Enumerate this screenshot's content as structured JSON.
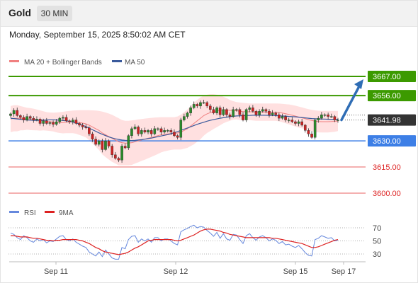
{
  "header": {
    "title": "Gold",
    "timeframe": "30 MIN"
  },
  "timestamp": "Monday, September 15, 2025 8:50:02 AM CET",
  "colors": {
    "candle_up": "#2a8a2a",
    "candle_down": "#cc2222",
    "bollinger_fill": "#ffd6d6",
    "ma20": "#f08080",
    "ma50": "#3a5a9c",
    "resistance": "#3c9a00",
    "support": "#3d7fe6",
    "secondary_support": "#e86060",
    "current_price_label": "#333333",
    "arrow": "#2f6db5",
    "rsi": "#6688dd",
    "rsi_ma": "#dd2222"
  },
  "chart_data": [
    {
      "type": "candlestick",
      "legend": [
        {
          "name": "MA 20 + Bollinger Bands",
          "color": "#f08080"
        },
        {
          "name": "MA 50",
          "color": "#3a5a9c"
        }
      ],
      "x_labels": [
        "Sep 11",
        "Sep 12",
        "Sep 15",
        "Sep 17"
      ],
      "price_levels": [
        {
          "value": 3667.0,
          "label": "3667.00",
          "kind": "resistance"
        },
        {
          "value": 3656.0,
          "label": "3656.00",
          "kind": "resistance"
        },
        {
          "value": 3641.98,
          "label": "3641.98",
          "kind": "current"
        },
        {
          "value": 3630.0,
          "label": "3630.00",
          "kind": "support"
        },
        {
          "value": 3615.0,
          "label": "3615.00",
          "kind": "secondary_support"
        },
        {
          "value": 3600.0,
          "label": "3600.00",
          "kind": "secondary_support"
        }
      ],
      "ylim": [
        3595,
        3672
      ],
      "close": [
        3645.5,
        3647.5,
        3644.5,
        3643.5,
        3642,
        3644,
        3643,
        3642,
        3642.5,
        3640,
        3641.5,
        3640,
        3640.5,
        3639.5,
        3641,
        3643,
        3643.5,
        3641.5,
        3641,
        3642,
        3640,
        3639,
        3638,
        3637.5,
        3634,
        3631,
        3628,
        3630,
        3625,
        3630,
        3627,
        3622,
        3620,
        3619,
        3627,
        3626,
        3633,
        3637,
        3638,
        3634,
        3636,
        3635,
        3636,
        3634,
        3637,
        3637,
        3635,
        3636,
        3636,
        3635,
        3633,
        3632,
        3642,
        3644,
        3646,
        3649,
        3651,
        3650,
        3652,
        3652,
        3650,
        3648,
        3646,
        3649,
        3645,
        3648,
        3645,
        3644,
        3648,
        3648,
        3645,
        3642,
        3648,
        3649,
        3647,
        3645,
        3647,
        3648,
        3647,
        3645,
        3646,
        3645,
        3643,
        3644,
        3642,
        3642,
        3641,
        3640,
        3641,
        3639,
        3636,
        3634,
        3632,
        3642,
        3643,
        3645,
        3645,
        3644,
        3644,
        3642,
        3642
      ],
      "ma20": [
        3642.5,
        3643,
        3643,
        3643,
        3642.8,
        3642.7,
        3642.5,
        3642.3,
        3642,
        3641.7,
        3641.5,
        3641.2,
        3641,
        3640.8,
        3640.6,
        3640.5,
        3640.5,
        3640.7,
        3640.8,
        3640.9,
        3640.8,
        3640.5,
        3640.2,
        3639.8,
        3639,
        3638,
        3637,
        3636,
        3634.5,
        3633.5,
        3632.5,
        3631.5,
        3630.5,
        3629.5,
        3629,
        3628.7,
        3628.7,
        3629,
        3629.5,
        3630,
        3630.5,
        3631,
        3631.5,
        3632,
        3632.5,
        3633,
        3633.5,
        3633.8,
        3634,
        3634.2,
        3634.3,
        3634.5,
        3635,
        3636,
        3637,
        3638.5,
        3640,
        3641.5,
        3643,
        3644.5,
        3645.5,
        3646.2,
        3646.8,
        3647.2,
        3647.5,
        3647.7,
        3647.7,
        3647.5,
        3647.5,
        3647.3,
        3647,
        3646.8,
        3646.7,
        3646.7,
        3646.6,
        3646.5,
        3646.5,
        3646.5,
        3646.5,
        3646.5,
        3646.5,
        3646.5,
        3646.3,
        3646,
        3645.6,
        3645.2,
        3644.7,
        3644.2,
        3643.7,
        3643.2,
        3642.7,
        3642.2,
        3641.7,
        3641.3,
        3641.1,
        3641,
        3641,
        3641,
        3641.1,
        3641.2,
        3641.4
      ],
      "ma50": [
        3643,
        3642.8,
        3642.6,
        3642.4,
        3642.2,
        3642,
        3641.9,
        3641.8,
        3641.8,
        3641.8,
        3641.9,
        3642,
        3642.1,
        3642.1,
        3642,
        3641.9,
        3641.7,
        3641.5,
        3641.2,
        3640.8,
        3640.3,
        3639.7,
        3639,
        3638.2,
        3637.3,
        3636.4,
        3635.5,
        3634.6,
        3633.8,
        3633,
        3632.3,
        3631.7,
        3631.2,
        3630.8,
        3630.5,
        3630.3,
        3630.2,
        3630.2,
        3630.3,
        3630.5,
        3630.7,
        3631,
        3631.3,
        3631.6,
        3632,
        3632.4,
        3632.8,
        3633.2,
        3633.6,
        3634.1,
        3634.7,
        3635.3,
        3636,
        3636.7,
        3637.4,
        3638.1,
        3638.8,
        3639.5,
        3640.1,
        3640.7,
        3641.3,
        3641.8,
        3642.2,
        3642.6,
        3643,
        3643.3,
        3643.6,
        3643.9,
        3644.1,
        3644.3,
        3644.4,
        3644.5,
        3644.6,
        3644.6,
        3644.7,
        3644.7,
        3644.7,
        3644.7,
        3644.7,
        3644.6,
        3644.6,
        3644.5,
        3644.4,
        3644.3,
        3644.2,
        3644,
        3643.9,
        3643.8,
        3643.6,
        3643.4,
        3643.2,
        3643,
        3642.8,
        3642.7,
        3642.6,
        3642.5,
        3642.5,
        3642.4,
        3642.4,
        3642.4,
        3642.4
      ],
      "bollinger_upper": [
        3650,
        3650.5,
        3650.5,
        3650,
        3649.5,
        3649,
        3648.8,
        3648.5,
        3648,
        3647.5,
        3647,
        3646.5,
        3646.3,
        3646.2,
        3646.3,
        3646.5,
        3646.7,
        3647,
        3647.2,
        3647.4,
        3647.5,
        3647.6,
        3647.6,
        3647.6,
        3647.6,
        3647.5,
        3647.4,
        3647.2,
        3646.8,
        3646.3,
        3645.7,
        3645,
        3644,
        3643,
        3642,
        3641.5,
        3641.5,
        3641.8,
        3642,
        3642.3,
        3642.5,
        3642.8,
        3643,
        3643.2,
        3643.4,
        3643.5,
        3643.6,
        3643.6,
        3643.6,
        3643.6,
        3643.6,
        3644,
        3645,
        3646.5,
        3648,
        3650,
        3652,
        3653.5,
        3655,
        3656,
        3656.5,
        3656.8,
        3656.8,
        3656.5,
        3656,
        3655.3,
        3654.5,
        3653.5,
        3652.8,
        3652.3,
        3652,
        3651.8,
        3651.6,
        3651.5,
        3651.5,
        3651.5,
        3651.5,
        3651.5,
        3651.5,
        3651.5,
        3651.5,
        3651.5,
        3651.4,
        3651.3,
        3651.1,
        3650.9,
        3650.6,
        3650.2,
        3649.7,
        3649.2,
        3648.7,
        3648.2,
        3647.8,
        3647.5,
        3647.3,
        3647.2,
        3647.2,
        3647.2,
        3647.2,
        3647.2,
        3647.2
      ],
      "bollinger_lower": [
        3635,
        3635.5,
        3635.5,
        3636,
        3636.1,
        3636.4,
        3636.2,
        3636.1,
        3636,
        3635.9,
        3636,
        3635.9,
        3635.7,
        3635.4,
        3634.9,
        3634.5,
        3634.3,
        3634.4,
        3634.4,
        3634.4,
        3634.1,
        3633.4,
        3632.8,
        3632,
        3630.4,
        3628.5,
        3626.6,
        3624.8,
        3622.2,
        3620.7,
        3619.3,
        3618,
        3617,
        3616,
        3616,
        3616,
        3616,
        3616.2,
        3617,
        3617.7,
        3618.5,
        3619.2,
        3620,
        3620.8,
        3621.6,
        3622.5,
        3623.4,
        3624,
        3624.4,
        3624.8,
        3625,
        3625,
        3625,
        3625.5,
        3626,
        3627,
        3628,
        3629.5,
        3631,
        3633,
        3634.5,
        3635.6,
        3636.8,
        3637.9,
        3639,
        3640.1,
        3640.9,
        3641.5,
        3642.2,
        3642.3,
        3642,
        3641.8,
        3641.8,
        3641.9,
        3641.7,
        3641.5,
        3641.5,
        3641.5,
        3641.5,
        3641.5,
        3641.5,
        3641.5,
        3641.2,
        3640.7,
        3640.1,
        3639.5,
        3638.8,
        3638.2,
        3637.7,
        3637.2,
        3636.7,
        3636.2,
        3635.6,
        3635.1,
        3634.9,
        3634.8,
        3634.8,
        3634.8,
        3635,
        3635.2,
        3635.6
      ],
      "projection_arrow": {
        "from": 3641.98,
        "to": 3667.0
      }
    },
    {
      "type": "line",
      "legend": [
        {
          "name": "RSI",
          "color": "#6688dd"
        },
        {
          "name": "9MA",
          "color": "#dd2222"
        }
      ],
      "y_ticks": [
        70,
        50,
        30
      ],
      "ylim": [
        22,
        78
      ],
      "rsi": [
        62,
        60,
        55,
        52,
        58,
        55,
        50,
        48,
        53,
        50,
        52,
        47,
        50,
        49,
        53,
        57,
        58,
        52,
        50,
        53,
        48,
        45,
        42,
        40,
        33,
        30,
        27,
        33,
        26,
        36,
        30,
        24,
        22,
        22,
        40,
        38,
        52,
        57,
        58,
        48,
        53,
        50,
        53,
        48,
        55,
        55,
        50,
        53,
        53,
        50,
        46,
        44,
        64,
        67,
        69,
        72,
        74,
        70,
        72,
        71,
        66,
        62,
        57,
        63,
        54,
        61,
        53,
        51,
        60,
        59,
        52,
        46,
        58,
        61,
        55,
        51,
        56,
        58,
        55,
        50,
        53,
        51,
        46,
        49,
        44,
        45,
        42,
        40,
        43,
        38,
        32,
        28,
        27,
        52,
        54,
        58,
        56,
        54,
        55,
        50,
        51
      ],
      "rsi_ma": [
        58,
        58,
        57,
        56,
        56,
        56,
        55,
        54,
        54,
        53,
        52,
        51,
        51,
        50,
        51,
        51,
        52,
        52,
        52,
        52,
        52,
        51,
        50,
        48,
        46,
        43,
        40,
        38,
        35,
        33,
        32,
        31,
        30,
        29,
        30,
        31,
        33,
        36,
        39,
        41,
        44,
        47,
        50,
        51,
        52,
        52,
        52,
        52,
        52,
        52,
        51,
        50,
        51,
        53,
        55,
        57,
        59,
        62,
        65,
        67,
        68,
        68,
        67,
        66,
        65,
        63,
        62,
        60,
        59,
        58,
        57,
        56,
        55,
        55,
        55,
        55,
        55,
        55,
        55,
        55,
        54,
        54,
        53,
        52,
        51,
        50,
        49,
        48,
        47,
        46,
        44,
        42,
        40,
        40,
        41,
        43,
        45,
        47,
        49,
        51,
        52
      ],
      "x_labels": [
        "Sep 11",
        "Sep 12",
        "Sep 15",
        "Sep 17"
      ]
    }
  ]
}
